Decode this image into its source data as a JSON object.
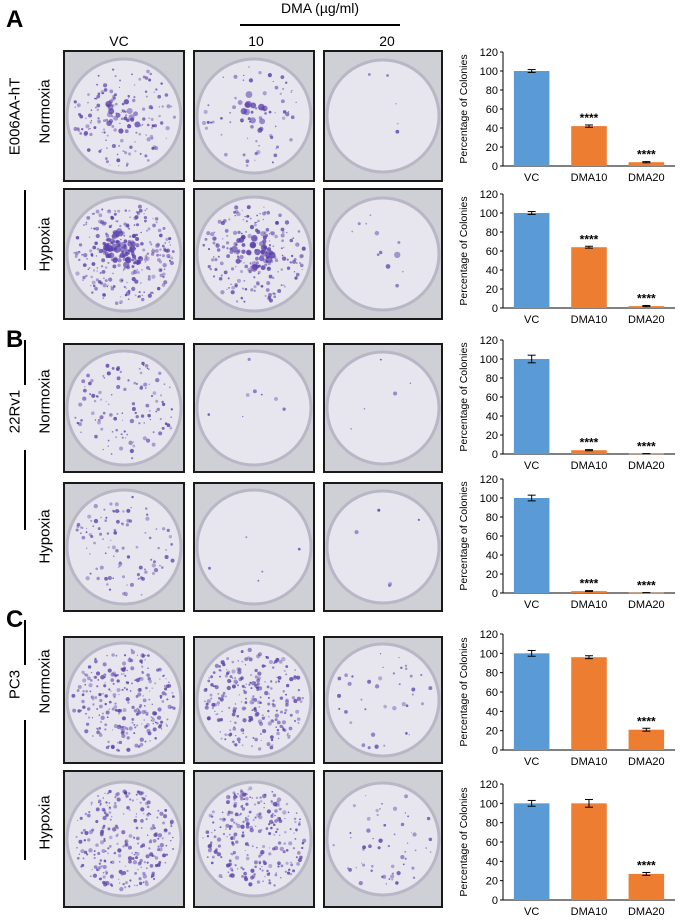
{
  "panels": [
    {
      "letter": "A",
      "cell_line": "E006AA-hT"
    },
    {
      "letter": "B",
      "cell_line": "22Rv1"
    },
    {
      "letter": "C",
      "cell_line": "PC3"
    }
  ],
  "header": {
    "treatment": "DMA (µg/ml)",
    "columns": [
      "VC",
      "10",
      "20"
    ]
  },
  "conditions": [
    "Normoxia",
    "Hypoxia"
  ],
  "colors": {
    "vc": "#5b9bd5",
    "dma": "#ed7d31",
    "dish_stain": "#5a3fa8"
  },
  "chart_data": [
    {
      "type": "bar",
      "panel": "A",
      "condition": "Normoxia",
      "categories": [
        "VC",
        "DMA10",
        "DMA20"
      ],
      "values": [
        100,
        42,
        4
      ],
      "errors": [
        1.5,
        1.2,
        0.6
      ],
      "significance": [
        "",
        "****",
        "****"
      ],
      "ylabel": "Percentage of Colonies",
      "ylim": [
        0,
        120
      ],
      "yticks": [
        0,
        20,
        40,
        60,
        80,
        100,
        120
      ]
    },
    {
      "type": "bar",
      "panel": "A",
      "condition": "Hypoxia",
      "categories": [
        "VC",
        "DMA10",
        "DMA20"
      ],
      "values": [
        100,
        64,
        2
      ],
      "errors": [
        1.5,
        1.0,
        0.6
      ],
      "significance": [
        "",
        "****",
        "****"
      ],
      "ylabel": "Percentage of Colonies",
      "ylim": [
        0,
        120
      ],
      "yticks": [
        0,
        20,
        40,
        60,
        80,
        100,
        120
      ]
    },
    {
      "type": "bar",
      "panel": "B",
      "condition": "Normoxia",
      "categories": [
        "VC",
        "DMA10",
        "DMA20"
      ],
      "values": [
        100,
        4,
        0.3
      ],
      "errors": [
        4,
        0.6,
        0.1
      ],
      "significance": [
        "",
        "****",
        "****"
      ],
      "ylabel": "Percentage of Colonies",
      "ylim": [
        0,
        120
      ],
      "yticks": [
        0,
        20,
        40,
        60,
        80,
        100,
        120
      ]
    },
    {
      "type": "bar",
      "panel": "B",
      "condition": "Hypoxia",
      "categories": [
        "VC",
        "DMA10",
        "DMA20"
      ],
      "values": [
        100,
        2,
        0.3
      ],
      "errors": [
        3,
        0.5,
        0.1
      ],
      "significance": [
        "",
        "****",
        "****"
      ],
      "ylabel": "Percentage of Colonies",
      "ylim": [
        0,
        120
      ],
      "yticks": [
        0,
        20,
        40,
        60,
        80,
        100,
        120
      ]
    },
    {
      "type": "bar",
      "panel": "C",
      "condition": "Normoxia",
      "categories": [
        "VC",
        "DMA10",
        "DMA20"
      ],
      "values": [
        100,
        96,
        21
      ],
      "errors": [
        3,
        1.5,
        1.5
      ],
      "significance": [
        "",
        "",
        "****"
      ],
      "ylabel": "Percentage of Colonies",
      "ylim": [
        0,
        120
      ],
      "yticks": [
        0,
        20,
        40,
        60,
        80,
        100,
        120
      ]
    },
    {
      "type": "bar",
      "panel": "C",
      "condition": "Hypoxia",
      "categories": [
        "VC",
        "DMA10",
        "DMA20"
      ],
      "values": [
        100,
        100,
        27
      ],
      "errors": [
        3,
        4,
        1.5
      ],
      "significance": [
        "",
        "",
        "****"
      ],
      "ylabel": "Percentage of Colonies",
      "ylim": [
        0,
        120
      ],
      "yticks": [
        0,
        20,
        40,
        60,
        80,
        100,
        120
      ]
    }
  ]
}
